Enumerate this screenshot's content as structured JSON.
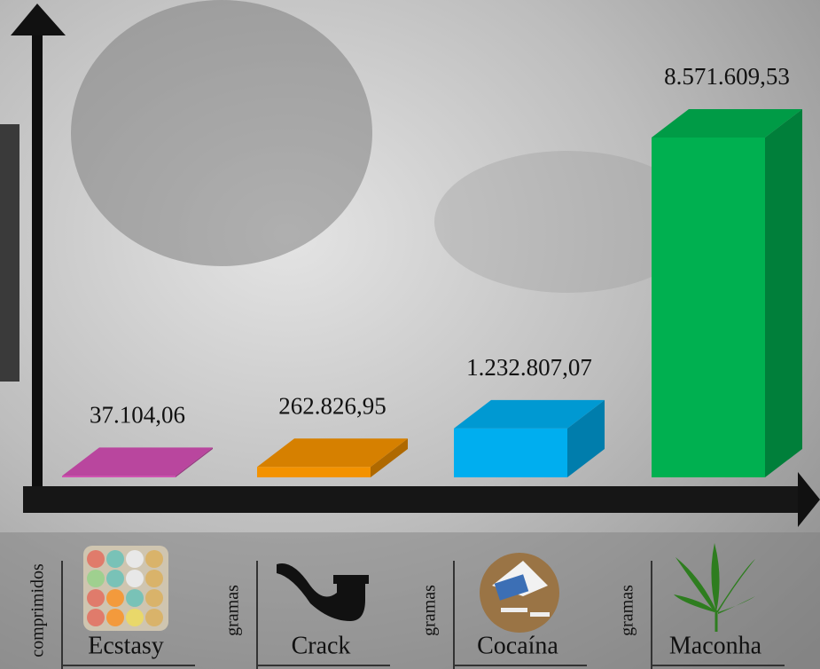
{
  "chart_data": {
    "type": "bar3d",
    "categories": [
      "Ecstasy",
      "Crack",
      "Cocaína",
      "Maconha"
    ],
    "units": [
      "comprimidos",
      "gramas",
      "gramas",
      "gramas"
    ],
    "values": [
      37104.06,
      262826.95,
      1232807.07,
      8571609.53
    ],
    "value_labels": [
      "37.104,06",
      "262.826,95",
      "1.232.807,07",
      "8.571.609,53"
    ],
    "colors": [
      "#d24fb3",
      "#f39200",
      "#00aeef",
      "#00b050"
    ]
  }
}
